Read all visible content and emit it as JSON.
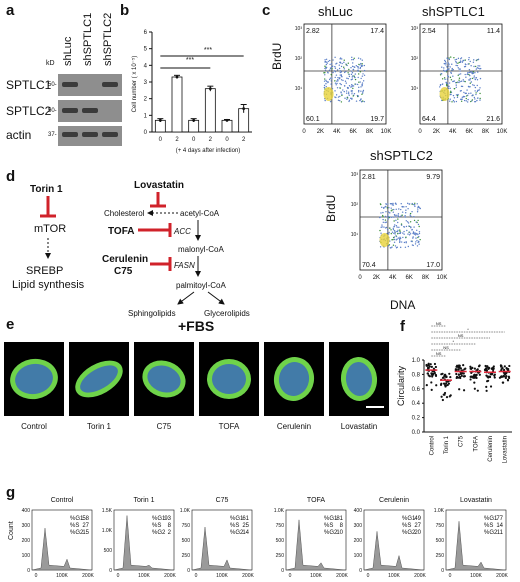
{
  "panels": {
    "a": "a",
    "b": "b",
    "c": "c",
    "d": "d",
    "e": "e",
    "f": "f",
    "g": "g"
  },
  "panel_a": {
    "kd_label": "kD",
    "lanes": [
      "shLuc",
      "shSPTLC1",
      "shSPTLC2"
    ],
    "rows": [
      {
        "name": "SPTLC1",
        "marker": "50-",
        "bands": [
          true,
          false,
          true
        ]
      },
      {
        "name": "SPTLC2",
        "marker": "50-",
        "bands": [
          true,
          true,
          false
        ]
      },
      {
        "name": "actin",
        "marker": "37-",
        "bands": [
          true,
          true,
          true
        ]
      }
    ]
  },
  "panel_b": {
    "ylabel": "Cell number ( x 10⁻⁵)",
    "xlabel": "(+ 4 days after infection)",
    "yticks": [
      "0",
      "1",
      "2",
      "3",
      "4",
      "5",
      "6"
    ],
    "significance": [
      "***",
      "***"
    ],
    "chart_data": {
      "type": "bar",
      "categories": [
        "0",
        "2",
        "0",
        "2",
        "0",
        "2"
      ],
      "values": [
        0.7,
        3.3,
        0.7,
        2.6,
        0.7,
        1.4
      ],
      "errors": [
        0.1,
        0.1,
        0.1,
        0.15,
        0.05,
        0.25
      ],
      "ylim": [
        0,
        6
      ]
    }
  },
  "panel_c": {
    "plots": [
      {
        "title": "shLuc",
        "q": [
          "2.82",
          "17.4",
          "60.1",
          "19.7"
        ]
      },
      {
        "title": "shSPTLC1",
        "q": [
          "2.54",
          "11.4",
          "64.4",
          "21.6"
        ]
      },
      {
        "title": "shSPTLC2",
        "q": [
          "2.81",
          "9.79",
          "70.4",
          "17.0"
        ]
      }
    ],
    "ylabel": "BrdU",
    "xlabel": "DNA",
    "xticks": [
      "0",
      "2K",
      "4K",
      "6K",
      "8K",
      "10K"
    ],
    "yticks": [
      "10³",
      "10²",
      "10¹"
    ]
  },
  "panel_d": {
    "torin": "Torin 1",
    "mtor": "mTOR",
    "srebp": "SREBP",
    "lipid": "Lipid synthesis",
    "lovastatin": "Lovastatin",
    "cholesterol": "Cholesterol",
    "acetyl": "acetyl-CoA",
    "tofa": "TOFA",
    "acc": "ACC",
    "malonyl": "malonyl-CoA",
    "cerulenin": "Cerulenin",
    "c75": "C75",
    "fasn": "FASN",
    "palmitoyl": "palmitoyl-CoA",
    "sphingo": "Sphingolipids",
    "glycero": "Glycerolipids"
  },
  "panel_e": {
    "title": "+FBS",
    "labels": [
      "Control",
      "Torin 1",
      "C75",
      "TOFA",
      "Cerulenin",
      "Lovastatin"
    ]
  },
  "panel_f": {
    "ylabel": "Circularity",
    "yticks": [
      "1.0",
      "0.8",
      "0.6",
      "0.4",
      "0.2",
      "0.0"
    ],
    "groups": [
      "Control",
      "Torin 1",
      "C75",
      "TOFA",
      "Cerulenin",
      "Lovastatin"
    ],
    "sig": [
      "NS",
      "NS",
      "*",
      "NS",
      "*",
      "NS"
    ],
    "chart_data": {
      "type": "scatter",
      "categories": [
        "Control",
        "Torin 1",
        "C75",
        "TOFA",
        "Cerulenin",
        "Lovastatin"
      ],
      "medians": [
        0.86,
        0.72,
        0.84,
        0.84,
        0.83,
        0.84
      ],
      "ylim": [
        0,
        1
      ]
    }
  },
  "panel_g": {
    "ylabel": "Count",
    "xticks": [
      "0",
      "100K",
      "200K"
    ],
    "plots": [
      {
        "title": "Control",
        "ymax": "400",
        "yt": [
          "400",
          "300",
          "200",
          "100",
          "0"
        ],
        "g1": "58",
        "s": "27",
        "g2": "15"
      },
      {
        "title": "Torin 1",
        "ymax": "1.5K",
        "yt": [
          "1.5K",
          "1.0K",
          "500",
          "0"
        ],
        "g1": "93",
        "s": "8",
        "g2": "2"
      },
      {
        "title": "C75",
        "ymax": "1.0K",
        "yt": [
          "1.0K",
          "750",
          "500",
          "250",
          "0"
        ],
        "g1": "61",
        "s": "25",
        "g2": "14"
      },
      {
        "title": "TOFA",
        "ymax": "1.0K",
        "yt": [
          "1.0K",
          "750",
          "500",
          "250",
          "0"
        ],
        "g1": "81",
        "s": "8",
        "g2": "10"
      },
      {
        "title": "Cerulenin",
        "ymax": "400",
        "yt": [
          "400",
          "300",
          "200",
          "100",
          "0"
        ],
        "g1": "49",
        "s": "27",
        "g2": "20"
      },
      {
        "title": "Lovastatin",
        "ymax": "1.0K",
        "yt": [
          "1.0K",
          "750",
          "500",
          "250",
          "0"
        ],
        "g1": "77",
        "s": "14",
        "g2": "11"
      }
    ],
    "labels": {
      "g1": "%G1",
      "s": "%S",
      "g2": "%G2"
    }
  }
}
